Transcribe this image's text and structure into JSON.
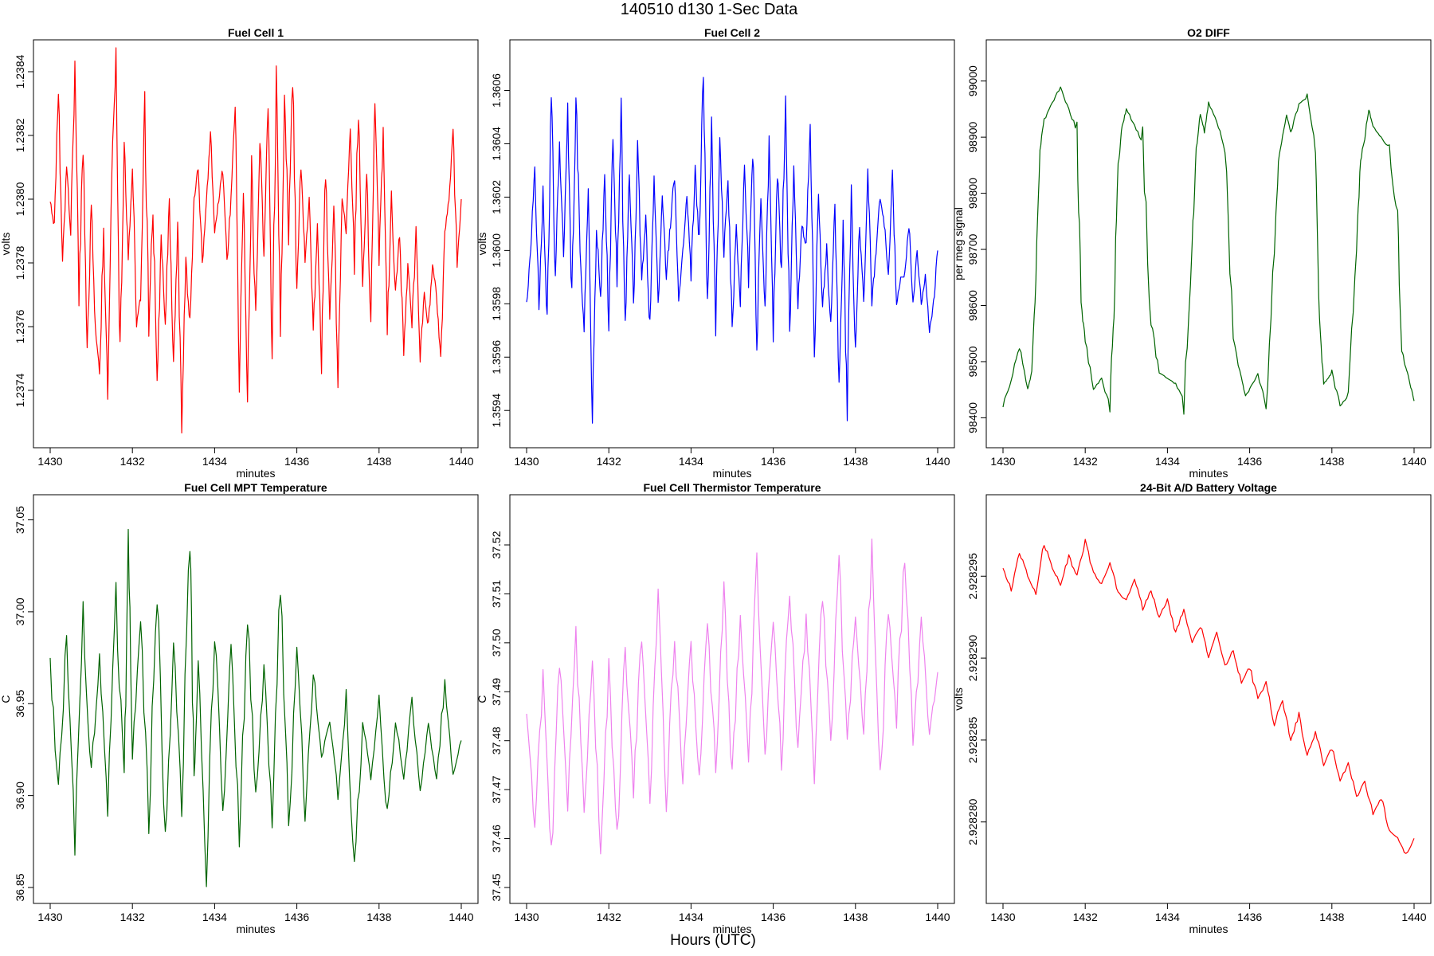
{
  "figure": {
    "title": "140510   d130   1-Sec Data",
    "footer_xlabel": "Hours (UTC)"
  },
  "chart_data": [
    {
      "id": "fc1",
      "type": "line",
      "title": "Fuel Cell 1",
      "xlabel": "minutes",
      "ylabel": "volts",
      "color": "#ff0000",
      "xlim": [
        1430,
        1440
      ],
      "ylim": [
        1.23727,
        1.23845
      ],
      "x_ticks": [
        1430,
        1432,
        1434,
        1436,
        1438,
        1440
      ],
      "x_tick_labels": [
        "1430",
        "1432",
        "1434",
        "1436",
        "1438",
        "1440"
      ],
      "y_ticks": [
        1.2374,
        1.2376,
        1.2378,
        1.238,
        1.2382,
        1.2384
      ],
      "y_tick_labels": [
        "1.2374",
        "1.2376",
        "1.2378",
        "1.2380",
        "1.2382",
        "1.2384"
      ],
      "x": [
        1430.0,
        1430.1,
        1430.2,
        1430.3,
        1430.4,
        1430.5,
        1430.6,
        1430.7,
        1430.8,
        1430.9,
        1431.0,
        1431.1,
        1431.2,
        1431.3,
        1431.4,
        1431.5,
        1431.6,
        1431.7,
        1431.8,
        1431.9,
        1432.0,
        1432.1,
        1432.2,
        1432.3,
        1432.4,
        1432.5,
        1432.6,
        1432.7,
        1432.8,
        1432.9,
        1433.0,
        1433.1,
        1433.2,
        1433.3,
        1433.4,
        1433.5,
        1433.6,
        1433.7,
        1433.8,
        1433.9,
        1434.0,
        1434.1,
        1434.2,
        1434.3,
        1434.4,
        1434.5,
        1434.6,
        1434.7,
        1434.8,
        1434.9,
        1435.0,
        1435.1,
        1435.2,
        1435.3,
        1435.4,
        1435.5,
        1435.6,
        1435.7,
        1435.8,
        1435.9,
        1436.0,
        1436.1,
        1436.2,
        1436.3,
        1436.4,
        1436.5,
        1436.6,
        1436.7,
        1436.8,
        1436.9,
        1437.0,
        1437.1,
        1437.2,
        1437.3,
        1437.4,
        1437.5,
        1437.6,
        1437.7,
        1437.8,
        1437.9,
        1438.0,
        1438.1,
        1438.2,
        1438.3,
        1438.4,
        1438.5,
        1438.6,
        1438.7,
        1438.8,
        1438.9,
        1439.0,
        1439.1,
        1439.2,
        1439.3,
        1439.4,
        1439.5,
        1439.6,
        1439.7,
        1439.8,
        1439.9,
        1440.0
      ],
      "y": [
        1.238,
        1.2379,
        1.23835,
        1.2378,
        1.2381,
        1.2379,
        1.2384,
        1.2377,
        1.2382,
        1.2375,
        1.238,
        1.2376,
        1.23745,
        1.2379,
        1.2374,
        1.2381,
        1.2384,
        1.2375,
        1.2382,
        1.2378,
        1.2381,
        1.2376,
        1.2377,
        1.2383,
        1.2376,
        1.238,
        1.2374,
        1.2379,
        1.2376,
        1.238,
        1.2375,
        1.2379,
        1.2373,
        1.2378,
        1.2376,
        1.238,
        1.2381,
        1.2378,
        1.238,
        1.2382,
        1.2379,
        1.238,
        1.2381,
        1.2378,
        1.238,
        1.2383,
        1.2374,
        1.238,
        1.2374,
        1.2381,
        1.2376,
        1.2382,
        1.2378,
        1.2383,
        1.2375,
        1.2384,
        1.2376,
        1.2383,
        1.2379,
        1.2384,
        1.2377,
        1.2381,
        1.2378,
        1.238,
        1.2376,
        1.2379,
        1.2375,
        1.2381,
        1.2376,
        1.238,
        1.2374,
        1.238,
        1.2379,
        1.2382,
        1.2378,
        1.2383,
        1.2377,
        1.2381,
        1.2376,
        1.2383,
        1.2378,
        1.2382,
        1.2376,
        1.238,
        1.2377,
        1.2379,
        1.2375,
        1.2378,
        1.2376,
        1.2379,
        1.2375,
        1.2377,
        1.2376,
        1.2378,
        1.2377,
        1.2375,
        1.2379,
        1.238,
        1.2382,
        1.2378,
        1.238
      ]
    },
    {
      "id": "fc2",
      "type": "line",
      "title": "Fuel Cell 2",
      "xlabel": "minutes",
      "ylabel": "volts",
      "color": "#0000ff",
      "xlim": [
        1430,
        1440
      ],
      "ylim": [
        1.35932,
        1.36073
      ],
      "x_ticks": [
        1430,
        1432,
        1434,
        1436,
        1438,
        1440
      ],
      "x_tick_labels": [
        "1430",
        "1432",
        "1434",
        "1436",
        "1438",
        "1440"
      ],
      "y_ticks": [
        1.3594,
        1.3596,
        1.3598,
        1.36,
        1.3602,
        1.3604,
        1.3606
      ],
      "y_tick_labels": [
        "1.3594",
        "1.3596",
        "1.3598",
        "1.3600",
        "1.3602",
        "1.3604",
        "1.3606"
      ],
      "x": [
        1430.0,
        1430.1,
        1430.2,
        1430.3,
        1430.4,
        1430.5,
        1430.6,
        1430.7,
        1430.8,
        1430.9,
        1431.0,
        1431.1,
        1431.2,
        1431.3,
        1431.4,
        1431.5,
        1431.6,
        1431.7,
        1431.8,
        1431.9,
        1432.0,
        1432.1,
        1432.2,
        1432.3,
        1432.4,
        1432.5,
        1432.6,
        1432.7,
        1432.8,
        1432.9,
        1433.0,
        1433.1,
        1433.2,
        1433.3,
        1433.4,
        1433.5,
        1433.6,
        1433.7,
        1433.8,
        1433.9,
        1434.0,
        1434.1,
        1434.2,
        1434.3,
        1434.4,
        1434.5,
        1434.6,
        1434.7,
        1434.8,
        1434.9,
        1435.0,
        1435.1,
        1435.2,
        1435.3,
        1435.4,
        1435.5,
        1435.6,
        1435.7,
        1435.8,
        1435.9,
        1436.0,
        1436.1,
        1436.2,
        1436.3,
        1436.4,
        1436.5,
        1436.6,
        1436.7,
        1436.8,
        1436.9,
        1437.0,
        1437.1,
        1437.2,
        1437.3,
        1437.4,
        1437.5,
        1437.6,
        1437.7,
        1437.8,
        1437.9,
        1438.0,
        1438.1,
        1438.2,
        1438.3,
        1438.4,
        1438.5,
        1438.6,
        1438.7,
        1438.8,
        1438.9,
        1439.0,
        1439.1,
        1439.2,
        1439.3,
        1439.4,
        1439.5,
        1439.6,
        1439.7,
        1439.8,
        1439.9,
        1440.0
      ],
      "y": [
        1.3598,
        1.36,
        1.3603,
        1.3598,
        1.3602,
        1.3597,
        1.3606,
        1.3599,
        1.3604,
        1.36,
        1.3605,
        1.3598,
        1.3606,
        1.36,
        1.3597,
        1.3602,
        1.3594,
        1.3601,
        1.3598,
        1.3603,
        1.3597,
        1.3604,
        1.3599,
        1.3605,
        1.3597,
        1.3603,
        1.3598,
        1.3604,
        1.3599,
        1.3601,
        1.3597,
        1.3603,
        1.3598,
        1.3602,
        1.3599,
        1.3601,
        1.3603,
        1.3598,
        1.36,
        1.3602,
        1.3599,
        1.3603,
        1.36,
        1.3607,
        1.3598,
        1.3605,
        1.3597,
        1.3604,
        1.36,
        1.3603,
        1.3597,
        1.3601,
        1.3598,
        1.3603,
        1.3599,
        1.3604,
        1.3596,
        1.3602,
        1.3598,
        1.3604,
        1.3597,
        1.3603,
        1.3599,
        1.3606,
        1.3597,
        1.3603,
        1.3598,
        1.3601,
        1.36,
        1.3605,
        1.3596,
        1.3602,
        1.3598,
        1.36,
        1.3597,
        1.3602,
        1.3595,
        1.3601,
        1.3594,
        1.3602,
        1.3596,
        1.3601,
        1.3598,
        1.3603,
        1.3598,
        1.36,
        1.3602,
        1.3601,
        1.3599,
        1.3603,
        1.3598,
        1.3599,
        1.3599,
        1.3601,
        1.3598,
        1.36,
        1.3598,
        1.3599,
        1.3597,
        1.3598,
        1.36
      ]
    },
    {
      "id": "o2",
      "type": "line",
      "title": "O2 DIFF",
      "xlabel": "minutes",
      "ylabel": "per meg signal",
      "color": "#006400",
      "xlim": [
        1430,
        1440
      ],
      "ylim": [
        98375,
        99045
      ],
      "x_ticks": [
        1430,
        1432,
        1434,
        1436,
        1438,
        1440
      ],
      "x_tick_labels": [
        "1430",
        "1432",
        "1434",
        "1436",
        "1438",
        "1440"
      ],
      "y_ticks": [
        98400,
        98500,
        98600,
        98700,
        98800,
        98900,
        99000
      ],
      "y_tick_labels": [
        "98400",
        "98500",
        "98600",
        "98700",
        "98800",
        "98900",
        "99000"
      ],
      "x": [
        1430.0,
        1430.2,
        1430.4,
        1430.6,
        1430.7,
        1430.8,
        1430.9,
        1431.0,
        1431.2,
        1431.4,
        1431.6,
        1431.8,
        1431.9,
        1432.0,
        1432.2,
        1432.4,
        1432.6,
        1432.7,
        1432.8,
        1432.9,
        1433.0,
        1433.2,
        1433.4,
        1433.6,
        1433.8,
        1434.0,
        1434.2,
        1434.4,
        1434.6,
        1434.7,
        1434.8,
        1434.9,
        1435.0,
        1435.2,
        1435.4,
        1435.6,
        1435.8,
        1435.9,
        1436.0,
        1436.2,
        1436.4,
        1436.6,
        1436.7,
        1436.8,
        1436.9,
        1437.0,
        1437.2,
        1437.4,
        1437.6,
        1437.7,
        1437.8,
        1437.9,
        1438.0,
        1438.2,
        1438.4,
        1438.6,
        1438.7,
        1438.8,
        1438.9,
        1439.0,
        1439.2,
        1439.4,
        1439.6,
        1439.7,
        1439.8,
        1439.9,
        1440.0
      ],
      "y": [
        98420,
        98470,
        98530,
        98450,
        98480,
        98650,
        98880,
        98930,
        98960,
        98990,
        98950,
        98910,
        98600,
        98540,
        98450,
        98470,
        98420,
        98600,
        98850,
        98920,
        98950,
        98920,
        98890,
        98570,
        98480,
        98470,
        98460,
        98430,
        98700,
        98880,
        98940,
        98910,
        98960,
        98930,
        98880,
        98540,
        98470,
        98440,
        98450,
        98480,
        98420,
        98700,
        98860,
        98900,
        98940,
        98910,
        98960,
        98970,
        98890,
        98580,
        98460,
        98470,
        98480,
        98420,
        98440,
        98700,
        98860,
        98900,
        98950,
        98920,
        98900,
        98880,
        98750,
        98520,
        98490,
        98460,
        98430
      ]
    },
    {
      "id": "mpt",
      "type": "line",
      "title": "Fuel Cell MPT Temperature",
      "xlabel": "minutes",
      "ylabel": "C",
      "color": "#006400",
      "xlim": [
        1430,
        1440
      ],
      "ylim": [
        36.85,
        37.055
      ],
      "x_ticks": [
        1430,
        1432,
        1434,
        1436,
        1438,
        1440
      ],
      "x_tick_labels": [
        "1430",
        "1432",
        "1434",
        "1436",
        "1438",
        "1440"
      ],
      "y_ticks": [
        36.85,
        36.9,
        36.95,
        37.0,
        37.05
      ],
      "y_tick_labels": [
        "36.85",
        "36.90",
        "36.95",
        "37.00",
        "37.05"
      ],
      "x": [
        1430.0,
        1430.2,
        1430.4,
        1430.6,
        1430.8,
        1431.0,
        1431.2,
        1431.4,
        1431.6,
        1431.8,
        1431.9,
        1432.0,
        1432.2,
        1432.4,
        1432.6,
        1432.8,
        1433.0,
        1433.2,
        1433.4,
        1433.5,
        1433.6,
        1433.8,
        1434.0,
        1434.2,
        1434.4,
        1434.6,
        1434.8,
        1435.0,
        1435.2,
        1435.4,
        1435.6,
        1435.8,
        1436.0,
        1436.2,
        1436.4,
        1436.6,
        1436.8,
        1437.0,
        1437.2,
        1437.4,
        1437.6,
        1437.8,
        1438.0,
        1438.2,
        1438.4,
        1438.6,
        1438.8,
        1439.0,
        1439.2,
        1439.4,
        1439.6,
        1439.8,
        1440.0
      ],
      "y": [
        36.97,
        36.9,
        36.99,
        36.87,
        37.0,
        36.91,
        36.98,
        36.89,
        37.01,
        36.9,
        37.05,
        36.92,
        36.99,
        36.89,
        37.01,
        36.88,
        36.98,
        36.9,
        37.04,
        36.91,
        36.97,
        36.86,
        36.99,
        36.89,
        36.98,
        36.88,
        37.0,
        36.9,
        36.97,
        36.89,
        37.02,
        36.88,
        36.98,
        36.89,
        36.97,
        36.92,
        36.94,
        36.9,
        36.95,
        36.86,
        36.94,
        36.91,
        36.95,
        36.89,
        36.94,
        36.91,
        36.95,
        36.9,
        36.94,
        36.91,
        36.96,
        36.91,
        36.93
      ]
    },
    {
      "id": "thermistor",
      "type": "line",
      "title": "Fuel Cell Thermistor Temperature",
      "xlabel": "minutes",
      "ylabel": "C",
      "color": "#ee82ee",
      "xlim": [
        1430,
        1440
      ],
      "ylim": [
        37.45,
        37.527
      ],
      "x_ticks": [
        1430,
        1432,
        1434,
        1436,
        1438,
        1440
      ],
      "x_tick_labels": [
        "1430",
        "1432",
        "1434",
        "1436",
        "1438",
        "1440"
      ],
      "y_ticks": [
        37.45,
        37.46,
        37.47,
        37.48,
        37.49,
        37.5,
        37.51,
        37.52
      ],
      "y_tick_labels": [
        "37.45",
        "37.46",
        "37.47",
        "37.48",
        "37.49",
        "37.50",
        "37.51",
        "37.52"
      ],
      "x": [
        1430.0,
        1430.2,
        1430.4,
        1430.6,
        1430.8,
        1431.0,
        1431.2,
        1431.4,
        1431.6,
        1431.8,
        1432.0,
        1432.2,
        1432.4,
        1432.6,
        1432.8,
        1433.0,
        1433.2,
        1433.4,
        1433.6,
        1433.8,
        1434.0,
        1434.2,
        1434.4,
        1434.6,
        1434.8,
        1435.0,
        1435.2,
        1435.4,
        1435.6,
        1435.8,
        1436.0,
        1436.2,
        1436.4,
        1436.6,
        1436.8,
        1437.0,
        1437.2,
        1437.4,
        1437.6,
        1437.8,
        1438.0,
        1438.2,
        1438.4,
        1438.6,
        1438.8,
        1439.0,
        1439.2,
        1439.4,
        1439.6,
        1439.8,
        1440.0
      ],
      "y": [
        37.487,
        37.462,
        37.493,
        37.455,
        37.496,
        37.466,
        37.501,
        37.463,
        37.497,
        37.458,
        37.494,
        37.46,
        37.499,
        37.47,
        37.503,
        37.466,
        37.51,
        37.468,
        37.502,
        37.471,
        37.499,
        37.47,
        37.505,
        37.474,
        37.51,
        37.472,
        37.506,
        37.477,
        37.515,
        37.476,
        37.504,
        37.476,
        37.512,
        37.478,
        37.505,
        37.474,
        37.51,
        37.48,
        37.516,
        37.478,
        37.506,
        37.482,
        37.518,
        37.472,
        37.506,
        37.484,
        37.52,
        37.478,
        37.505,
        37.482,
        37.494
      ]
    },
    {
      "id": "battery",
      "type": "line",
      "title": "24-Bit A/D Battery Voltage",
      "xlabel": "minutes",
      "ylabel": "volts",
      "color": "#ff0000",
      "xlim": [
        1430,
        1440
      ],
      "ylim": [
        2.928276,
        2.928299
      ],
      "x_ticks": [
        1430,
        1432,
        1434,
        1436,
        1438,
        1440
      ],
      "x_tick_labels": [
        "1430",
        "1432",
        "1434",
        "1436",
        "1438",
        "1440"
      ],
      "y_ticks": [
        2.92828,
        2.928285,
        2.92829,
        2.928295
      ],
      "y_tick_labels": [
        "2.928280",
        "2.928285",
        "2.928290",
        "2.928295"
      ],
      "x": [
        1430.0,
        1430.2,
        1430.4,
        1430.6,
        1430.8,
        1431.0,
        1431.2,
        1431.4,
        1431.6,
        1431.8,
        1432.0,
        1432.2,
        1432.4,
        1432.6,
        1432.8,
        1433.0,
        1433.2,
        1433.4,
        1433.6,
        1433.8,
        1434.0,
        1434.2,
        1434.4,
        1434.6,
        1434.8,
        1435.0,
        1435.2,
        1435.4,
        1435.6,
        1435.8,
        1436.0,
        1436.2,
        1436.4,
        1436.6,
        1436.8,
        1437.0,
        1437.2,
        1437.4,
        1437.6,
        1437.8,
        1438.0,
        1438.2,
        1438.4,
        1438.6,
        1438.8,
        1439.0,
        1439.2,
        1439.4,
        1439.6,
        1439.8,
        1440.0
      ],
      "y": [
        2.9282955,
        2.9282942,
        2.9282965,
        2.928295,
        2.928294,
        2.928297,
        2.9282955,
        2.9282945,
        2.9282962,
        2.928295,
        2.9282972,
        2.9282952,
        2.9282945,
        2.9282958,
        2.928294,
        2.9282935,
        2.9282948,
        2.928293,
        2.9282942,
        2.9282925,
        2.9282935,
        2.9282915,
        2.928293,
        2.928291,
        2.928292,
        2.92829,
        2.9282915,
        2.9282895,
        2.9282905,
        2.9282885,
        2.9282895,
        2.9282875,
        2.9282885,
        2.928286,
        2.9282875,
        2.928285,
        2.9282865,
        2.928284,
        2.9282855,
        2.9282835,
        2.9282845,
        2.9282825,
        2.9282835,
        2.9282815,
        2.9282825,
        2.9282805,
        2.9282815,
        2.9282795,
        2.928279,
        2.928278,
        2.928279
      ]
    }
  ]
}
